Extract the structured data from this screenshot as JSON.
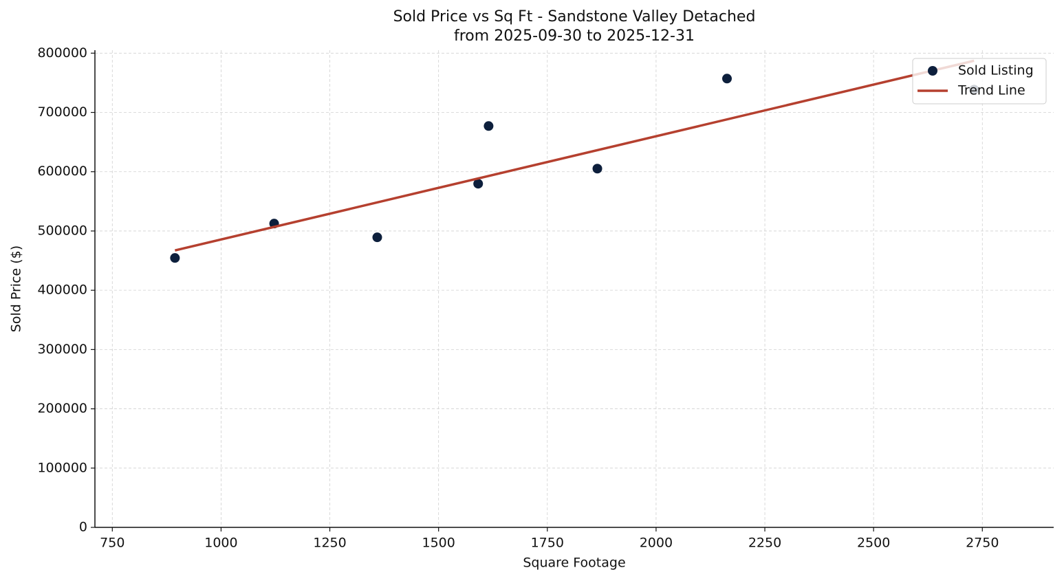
{
  "chart_data": {
    "type": "scatter",
    "title": "Sold Price vs Sq Ft - Sandstone Valley Detached",
    "subtitle": "from 2025-09-30 to 2025-12-31",
    "x_label": "Square Footage",
    "y_label": "Sold Price ($)",
    "xlim": [
      710,
      2914
    ],
    "ylim": [
      0,
      805000
    ],
    "xticks": [
      750,
      1000,
      1250,
      1500,
      1750,
      2000,
      2250,
      2500,
      2750
    ],
    "yticks": [
      0,
      100000,
      200000,
      300000,
      400000,
      500000,
      600000,
      700000,
      800000
    ],
    "grid": true,
    "legend": "upper right",
    "series": [
      {
        "name": "Sold Listing",
        "type": "scatter",
        "color": "#0d1f3c",
        "x": [
          894,
          1122,
          1359,
          1591,
          1615,
          1865,
          2163,
          2731
        ],
        "values": [
          454500,
          512500,
          489300,
          579700,
          677100,
          605200,
          757100,
          738500
        ]
      },
      {
        "name": "Trend Line",
        "type": "line",
        "color": "#b5402f",
        "x": [
          894,
          2731
        ],
        "values": [
          467200,
          787200
        ]
      }
    ]
  }
}
